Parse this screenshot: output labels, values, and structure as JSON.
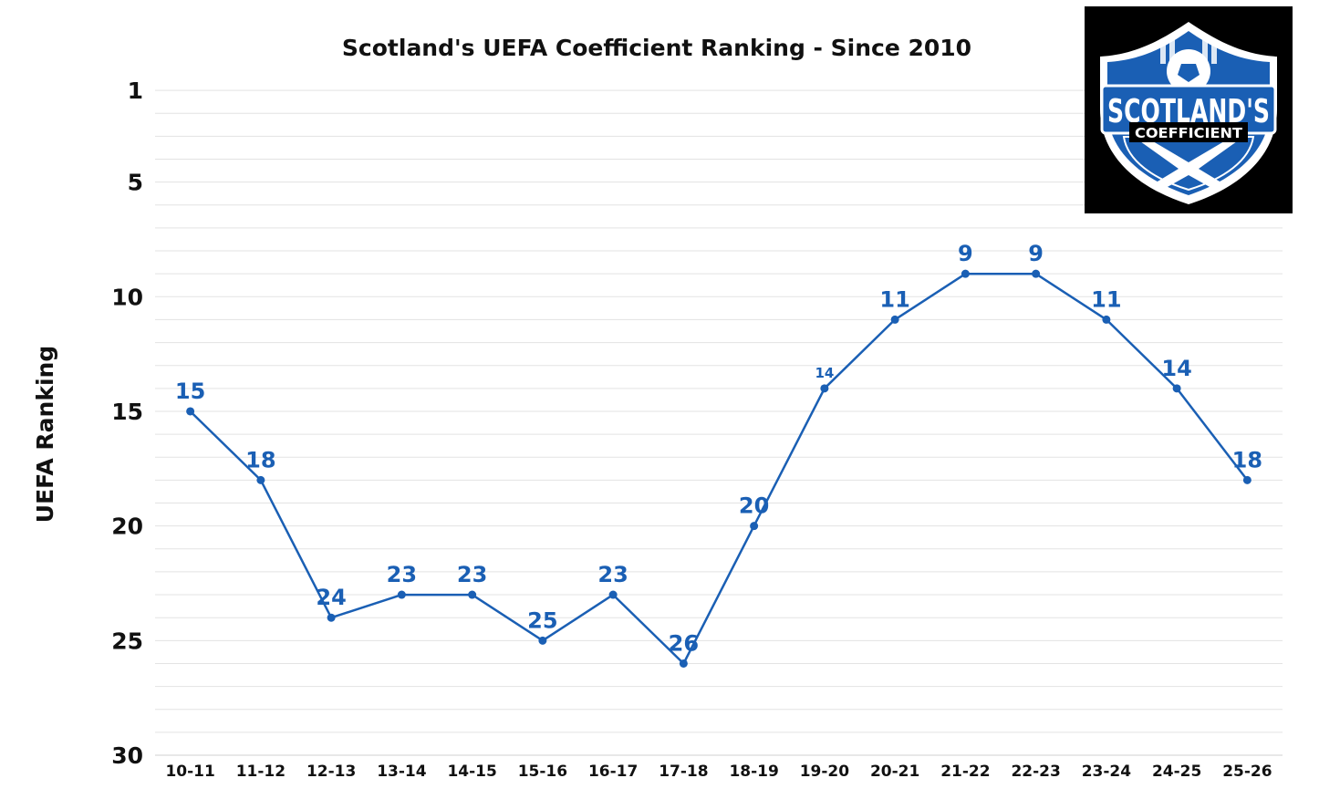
{
  "chart_data": {
    "type": "line",
    "title": "Scotland's UEFA Coefficient Ranking - Since 2010",
    "xlabel": "",
    "ylabel": "UEFA Ranking",
    "categories": [
      "10-11",
      "11-12",
      "12-13",
      "13-14",
      "14-15",
      "15-16",
      "16-17",
      "17-18",
      "18-19",
      "19-20",
      "20-21",
      "21-22",
      "22-23",
      "23-24",
      "24-25",
      "25-26"
    ],
    "series": [
      {
        "values": [
          15,
          18,
          24,
          23,
          23,
          25,
          23,
          26,
          20,
          14,
          11,
          9,
          9,
          11,
          14,
          18
        ]
      }
    ],
    "data_labels": [
      "15",
      "18",
      "24",
      "23",
      "23",
      "25",
      "23",
      "26",
      "20",
      "14",
      "11",
      "9",
      "9",
      "11",
      "14",
      "18"
    ],
    "yticks": [
      1,
      5,
      10,
      15,
      20,
      25,
      30
    ],
    "ylim": [
      1,
      30
    ],
    "y_reversed": true,
    "grid": true,
    "legend": "none",
    "color": "#1a5fb4"
  },
  "logo": {
    "line1": "SCOTLAND'S",
    "line2": "COEFFICIENT",
    "background": "#000000",
    "shield_color": "#1a5fb4",
    "outline_color": "#ffffff"
  }
}
